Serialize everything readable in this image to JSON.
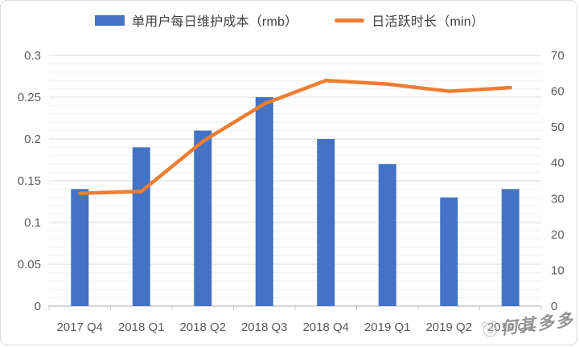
{
  "legend": {
    "items": [
      {
        "label": "单用户每日维护成本（rmb）",
        "color": "#4472C4",
        "swatch": "bar"
      },
      {
        "label": "日活跃时长（min）",
        "color": "#ED7D31",
        "swatch": "line"
      }
    ]
  },
  "watermark": {
    "text": "何其多多",
    "icon": "mascot-face-icon"
  },
  "chart_data": {
    "type": "combo",
    "categories": [
      "2017 Q4",
      "2018 Q1",
      "2018 Q2",
      "2018 Q3",
      "2018 Q4",
      "2019 Q1",
      "2019 Q2",
      "2019 Q3"
    ],
    "series": [
      {
        "name": "单用户每日维护成本（rmb）",
        "type": "bar",
        "axis": "left",
        "color": "#4472C4",
        "values": [
          0.14,
          0.19,
          0.21,
          0.25,
          0.2,
          0.17,
          0.13,
          0.14
        ]
      },
      {
        "name": "日活跃时长（min）",
        "type": "line",
        "axis": "right",
        "color": "#ED7D31",
        "values": [
          31.5,
          32,
          46,
          56.5,
          63,
          62,
          60,
          61
        ]
      }
    ],
    "left_axis": {
      "min": 0,
      "max": 0.3,
      "step": 0.05,
      "minor_step": 0.01,
      "tick_labels": [
        "0",
        "0.05",
        "0.1",
        "0.15",
        "0.2",
        "0.25",
        "0.3"
      ]
    },
    "right_axis": {
      "min": 0,
      "max": 70,
      "step": 10,
      "tick_labels": [
        "0",
        "10",
        "20",
        "30",
        "40",
        "50",
        "60",
        "70"
      ]
    },
    "grid": true,
    "legend_position": "top",
    "axis_text_color": "#595959"
  }
}
